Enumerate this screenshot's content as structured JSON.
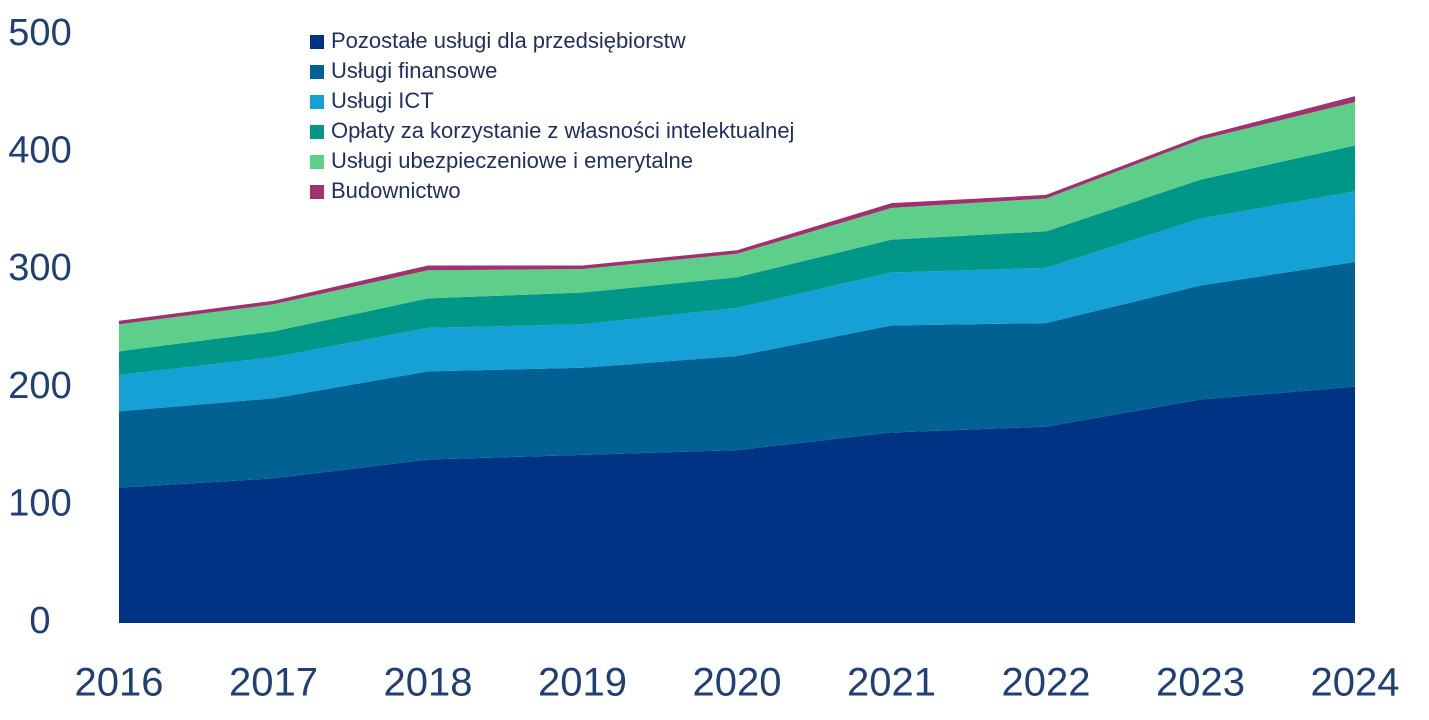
{
  "chart_data": {
    "type": "stacked_area",
    "categories": [
      "2016",
      "2017",
      "2018",
      "2019",
      "2020",
      "2021",
      "2022",
      "2023",
      "2024"
    ],
    "series": [
      {
        "name": "Pozostałe usługi dla przedsiębiorstw",
        "color": "#003383",
        "values": [
          115,
          123,
          139,
          143,
          147,
          162,
          167,
          190,
          201
        ]
      },
      {
        "name": "Usługi finansowe",
        "color": "#006192",
        "values": [
          65,
          68,
          75,
          74,
          80,
          91,
          88,
          97,
          106
        ]
      },
      {
        "name": "Usługi ICT",
        "color": "#15a0d6",
        "values": [
          31,
          35,
          37,
          37,
          41,
          45,
          47,
          57,
          60
        ]
      },
      {
        "name": "Opłaty za korzystanie z własności intelektualnej",
        "color": "#009688",
        "values": [
          20,
          22,
          25,
          27,
          26,
          28,
          31,
          33,
          39
        ]
      },
      {
        "name": "Usługi ubezpieczeniowe i emerytalne",
        "color": "#5ecf8a",
        "values": [
          23,
          23,
          24,
          20,
          20,
          27,
          28,
          34,
          37
        ]
      },
      {
        "name": "Budownictwo",
        "color": "#a0306e",
        "values": [
          3,
          3,
          4,
          3,
          3,
          4,
          3,
          3,
          5
        ]
      }
    ],
    "ylim": [
      0,
      500
    ],
    "yticks": [
      0,
      100,
      200,
      300,
      400,
      500
    ],
    "grid": false,
    "legend": "top"
  }
}
